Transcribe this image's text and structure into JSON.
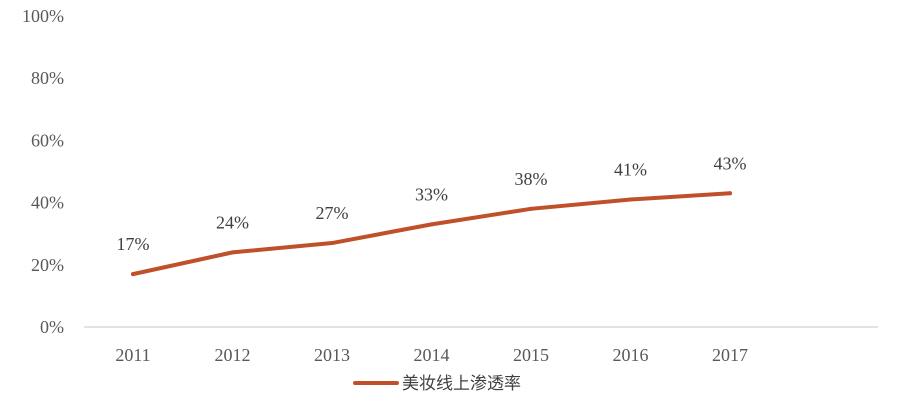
{
  "chart_data": {
    "type": "line",
    "categories": [
      "2011",
      "2012",
      "2013",
      "2014",
      "2015",
      "2016",
      "2017"
    ],
    "series": [
      {
        "name": "美妆线上渗透率",
        "values": [
          0.17,
          0.24,
          0.27,
          0.33,
          0.38,
          0.41,
          0.43
        ],
        "labels": [
          "17%",
          "24%",
          "27%",
          "33%",
          "38%",
          "41%",
          "43%"
        ],
        "color": "#C0502A"
      }
    ],
    "ylim": [
      0,
      1
    ],
    "yticks": [
      "0%",
      "20%",
      "40%",
      "60%",
      "80%",
      "100%"
    ],
    "grid": false,
    "legend_position": "bottom-center",
    "title": "",
    "xlabel": "",
    "ylabel": ""
  }
}
